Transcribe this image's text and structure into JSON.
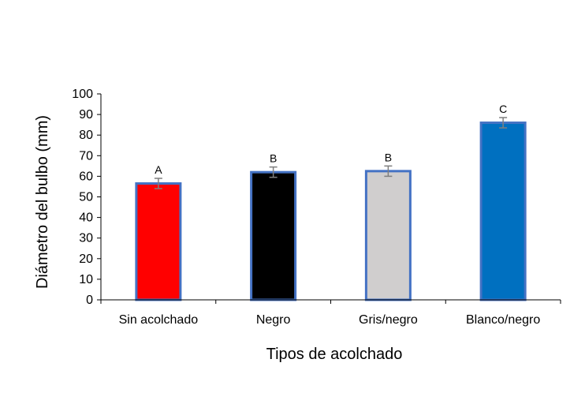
{
  "chart_data": {
    "type": "bar",
    "xlabel": "Tipos de acolchado",
    "ylabel": "Diámetro del bulbo (mm)",
    "ylim": [
      0,
      100
    ],
    "yticks": [
      0,
      10,
      20,
      30,
      40,
      50,
      60,
      70,
      80,
      90,
      100
    ],
    "grid": false,
    "categories": [
      "Sin acolchado",
      "Negro",
      "Gris/negro",
      "Blanco/negro"
    ],
    "values": [
      56.5,
      62,
      62.5,
      86
    ],
    "errors": [
      2.5,
      2.5,
      2.5,
      2.5
    ],
    "significance_labels": [
      "A",
      "B",
      "B",
      "C"
    ],
    "bar_colors": [
      "#ff0000",
      "#000000",
      "#d0cece",
      "#0070c0"
    ],
    "bar_border_color": "#4472c4",
    "error_bar_color": "#7f7f7f"
  }
}
